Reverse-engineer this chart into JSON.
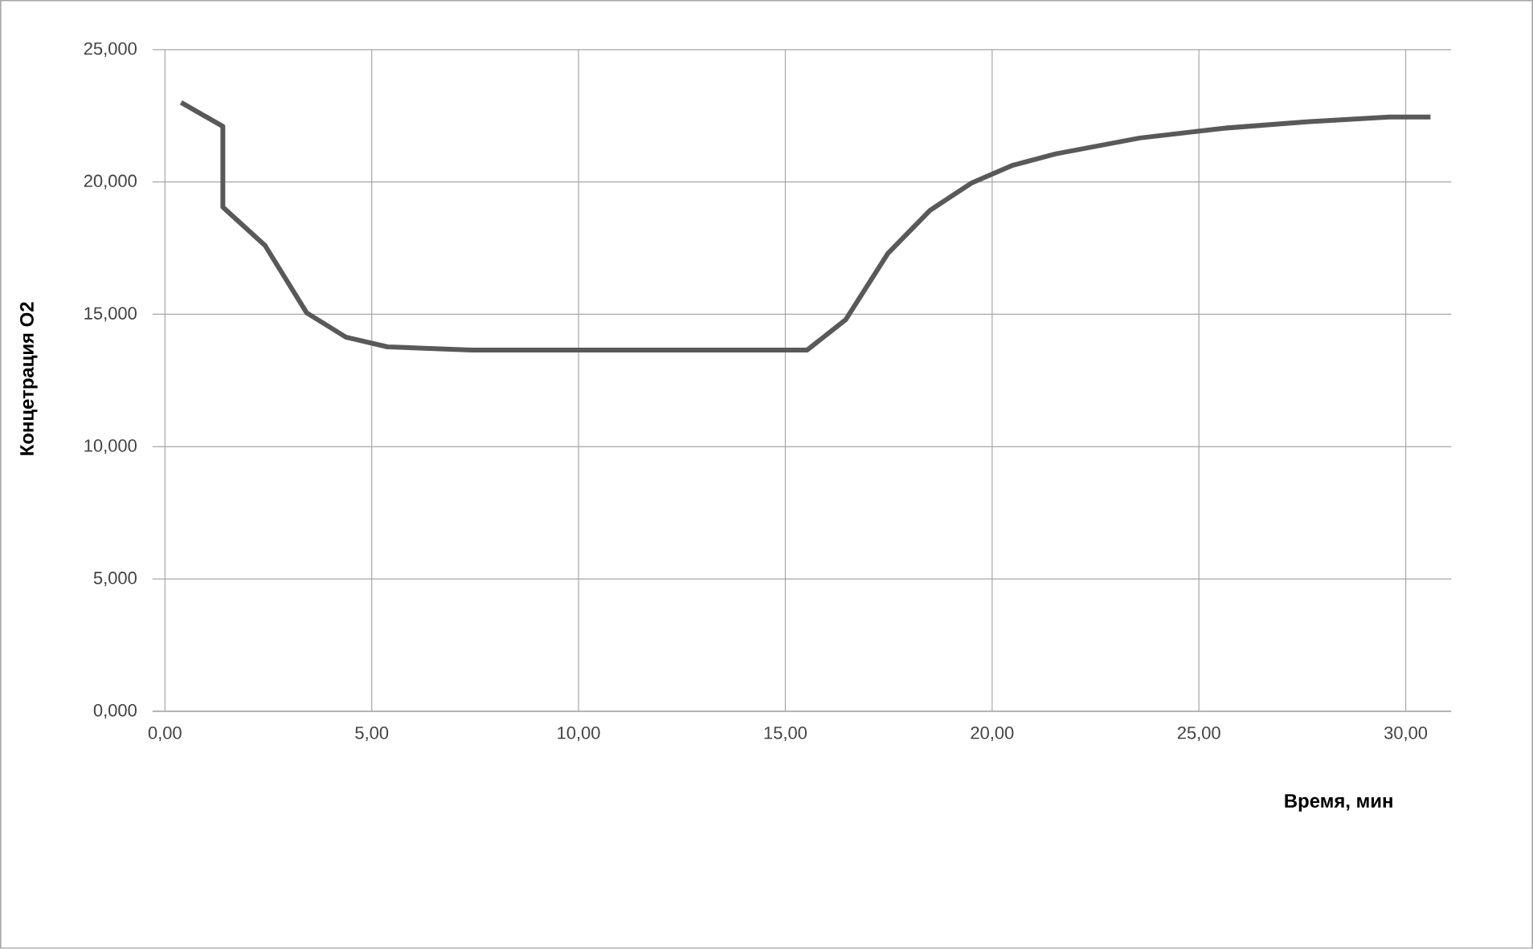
{
  "chart_data": {
    "type": "line",
    "xlabel": "Время, мин",
    "ylabel": "Концетрация О2",
    "x": [
      0.39,
      1.4,
      1.4,
      2.42,
      3.43,
      4.37,
      5.38,
      7.41,
      9.5,
      11.5,
      13.5,
      15.53,
      16.46,
      17.48,
      18.5,
      19.5,
      20.5,
      21.54,
      23.57,
      25.6,
      27.6,
      29.6,
      30.6
    ],
    "series": [
      {
        "color": "#595959",
        "values": [
          23.0,
          22.1,
          19.05,
          17.6,
          15.05,
          14.14,
          13.77,
          13.65,
          13.65,
          13.65,
          13.65,
          13.65,
          14.8,
          17.3,
          18.93,
          19.96,
          20.63,
          21.06,
          21.66,
          22.03,
          22.27,
          22.45,
          22.45
        ]
      }
    ],
    "xlim": [
      -0.3,
      31.1
    ],
    "ylim": [
      0,
      25
    ],
    "xticks": [
      {
        "value": 0,
        "label": "0,00"
      },
      {
        "value": 5,
        "label": "5,00"
      },
      {
        "value": 10,
        "label": "10,00"
      },
      {
        "value": 15,
        "label": "15,00"
      },
      {
        "value": 20,
        "label": "20,00"
      },
      {
        "value": 25,
        "label": "25,00"
      },
      {
        "value": 30,
        "label": "30,00"
      }
    ],
    "yticks": [
      {
        "value": 0,
        "label": "0,000"
      },
      {
        "value": 5,
        "label": "5,000"
      },
      {
        "value": 10,
        "label": "10,000"
      },
      {
        "value": 15,
        "label": "15,000"
      },
      {
        "value": 20,
        "label": "20,000"
      },
      {
        "value": 25,
        "label": "25,000"
      }
    ],
    "grid": true,
    "marker": "none",
    "line_style": "solid"
  }
}
